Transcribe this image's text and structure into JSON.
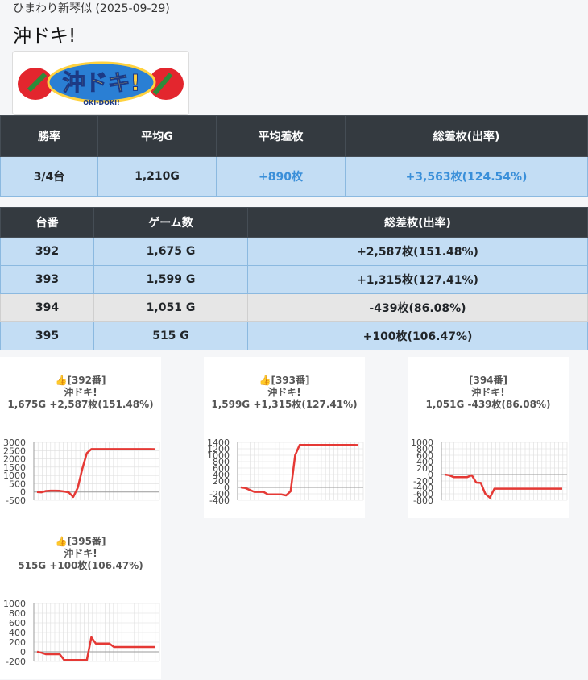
{
  "header": {
    "subtitle": "ひまわり新琴似 (2025-09-29)",
    "title": "沖ドキ!"
  },
  "logo": {
    "text": "沖ドキ!",
    "subtext": "OKI-DOKI!"
  },
  "summary": {
    "headers": [
      "勝率",
      "平均G",
      "平均差枚",
      "総差枚(出率)"
    ],
    "win_rate": "3/4台",
    "avg_games": "1,210G",
    "avg_diff": "+890枚",
    "total_diff": "+3,563枚(124.54%)"
  },
  "machines": {
    "headers": [
      "台番",
      "ゲーム数",
      "総差枚(出率)"
    ],
    "rows": [
      {
        "no": "392",
        "games": "1,675 G",
        "diff": "+2,587枚(151.48%)"
      },
      {
        "no": "393",
        "games": "1,599 G",
        "diff": "+1,315枚(127.41%)"
      },
      {
        "no": "394",
        "games": "1,051 G",
        "diff": "-439枚(86.08%)"
      },
      {
        "no": "395",
        "games": "515 G",
        "diff": "+100枚(106.47%)"
      }
    ]
  },
  "colors": {
    "line": "#e53935",
    "header_bg": "#343a40",
    "row_pos": "#c3ddf4",
    "row_neg": "#e6e6e6",
    "link": "#3a8fd9"
  },
  "chart_data": [
    {
      "type": "line",
      "title_lines": [
        "👍[392番]",
        "沖ドキ!",
        "1,675G +2,587枚(151.48%)"
      ],
      "ylim": [
        -500,
        3000
      ],
      "yticks": [
        3000,
        2500,
        2000,
        1500,
        1000,
        500,
        0,
        -500
      ],
      "y": [
        0,
        -20,
        60,
        80,
        80,
        70,
        30,
        -20,
        -300,
        250,
        1400,
        2350,
        2590,
        2590,
        2590,
        2590,
        2590,
        2590,
        2590,
        2590,
        2590,
        2590,
        2590,
        2590,
        2590,
        2590,
        2587
      ]
    },
    {
      "type": "line",
      "title_lines": [
        "👍[393番]",
        "沖ドキ!",
        "1,599G +1,315枚(127.41%)"
      ],
      "ylim": [
        -400,
        1400
      ],
      "yticks": [
        1400,
        1200,
        1000,
        800,
        600,
        400,
        200,
        0,
        -200,
        -400
      ],
      "y": [
        0,
        -20,
        -80,
        -140,
        -140,
        -140,
        -220,
        -220,
        -220,
        -220,
        -250,
        -120,
        1000,
        1320,
        1320,
        1320,
        1320,
        1320,
        1320,
        1320,
        1320,
        1320,
        1320,
        1320,
        1320,
        1320,
        1315
      ]
    },
    {
      "type": "line",
      "title_lines": [
        "[394番]",
        "沖ドキ!",
        "1,051G -439枚(86.08%)"
      ],
      "ylim": [
        -800,
        1000
      ],
      "yticks": [
        1000,
        800,
        600,
        400,
        200,
        0,
        -200,
        -400,
        -600,
        -800
      ],
      "y": [
        0,
        -20,
        -80,
        -80,
        -80,
        -80,
        -20,
        -250,
        -260,
        -600,
        -720,
        -439,
        -439,
        -439,
        -439,
        -439,
        -439,
        -439,
        -439,
        -439,
        -439,
        -439,
        -439,
        -439,
        -439,
        -439,
        -439
      ]
    },
    {
      "type": "line",
      "title_lines": [
        "👍[395番]",
        "沖ドキ!",
        "515G +100枚(106.47%)"
      ],
      "ylim": [
        -200,
        1000
      ],
      "yticks": [
        1000,
        800,
        600,
        400,
        200,
        0,
        -200
      ],
      "y": [
        0,
        -20,
        -50,
        -50,
        -50,
        -50,
        -170,
        -170,
        -170,
        -170,
        -170,
        -170,
        300,
        170,
        170,
        170,
        170,
        100,
        100,
        100,
        100,
        100,
        100,
        100,
        100,
        100,
        100
      ]
    }
  ]
}
